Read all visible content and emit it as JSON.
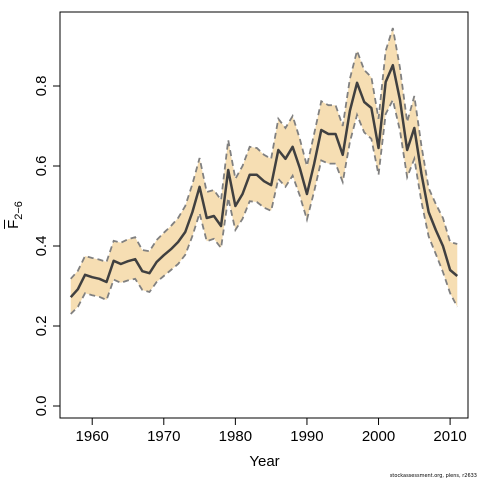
{
  "chart_data": {
    "type": "line",
    "title": "",
    "xlabel": "Year",
    "ylabel_main": "F",
    "ylabel_sub": "2−6",
    "xlim": [
      1955.5,
      2012.5
    ],
    "ylim": [
      -0.03,
      0.985
    ],
    "x_ticks": [
      1960,
      1970,
      1980,
      1990,
      2000,
      2010
    ],
    "y_ticks": [
      0.0,
      0.2,
      0.4,
      0.6,
      0.8
    ],
    "y_tick_labels": [
      "0.0",
      "0.2",
      "0.4",
      "0.6",
      "0.8"
    ],
    "grid": false,
    "colors": {
      "band": "#f6deb3",
      "line": "#404040",
      "bound": "#808080"
    },
    "x": [
      1957,
      1958,
      1959,
      1960,
      1961,
      1962,
      1963,
      1964,
      1965,
      1966,
      1967,
      1968,
      1969,
      1970,
      1971,
      1972,
      1973,
      1974,
      1975,
      1976,
      1977,
      1978,
      1979,
      1980,
      1981,
      1982,
      1983,
      1984,
      1985,
      1986,
      1987,
      1988,
      1989,
      1990,
      1991,
      1992,
      1993,
      1994,
      1995,
      1996,
      1997,
      1998,
      1999,
      2000,
      2001,
      2002,
      2003,
      2004,
      2005,
      2006,
      2007,
      2008,
      2009,
      2010,
      2011
    ],
    "series": [
      {
        "role": "estimate",
        "values": [
          0.272,
          0.292,
          0.328,
          0.322,
          0.318,
          0.31,
          0.363,
          0.355,
          0.362,
          0.367,
          0.337,
          0.332,
          0.36,
          0.377,
          0.392,
          0.41,
          0.435,
          0.485,
          0.548,
          0.47,
          0.475,
          0.45,
          0.59,
          0.5,
          0.53,
          0.578,
          0.578,
          0.562,
          0.552,
          0.64,
          0.618,
          0.648,
          0.595,
          0.53,
          0.605,
          0.69,
          0.68,
          0.68,
          0.628,
          0.738,
          0.808,
          0.76,
          0.745,
          0.645,
          0.81,
          0.852,
          0.765,
          0.64,
          0.695,
          0.58,
          0.485,
          0.44,
          0.4,
          0.34,
          0.325
        ]
      },
      {
        "role": "upper",
        "values": [
          0.318,
          0.338,
          0.375,
          0.37,
          0.366,
          0.36,
          0.413,
          0.408,
          0.417,
          0.422,
          0.39,
          0.387,
          0.415,
          0.433,
          0.45,
          0.47,
          0.5,
          0.555,
          0.62,
          0.535,
          0.54,
          0.515,
          0.665,
          0.568,
          0.6,
          0.648,
          0.645,
          0.628,
          0.618,
          0.718,
          0.695,
          0.725,
          0.668,
          0.6,
          0.68,
          0.762,
          0.752,
          0.752,
          0.7,
          0.818,
          0.888,
          0.84,
          0.822,
          0.718,
          0.888,
          0.945,
          0.845,
          0.71,
          0.775,
          0.65,
          0.545,
          0.505,
          0.47,
          0.41,
          0.405
        ]
      },
      {
        "role": "lower",
        "values": [
          0.23,
          0.248,
          0.282,
          0.277,
          0.273,
          0.265,
          0.316,
          0.308,
          0.314,
          0.318,
          0.29,
          0.285,
          0.31,
          0.325,
          0.34,
          0.355,
          0.378,
          0.425,
          0.482,
          0.412,
          0.418,
          0.395,
          0.52,
          0.44,
          0.468,
          0.512,
          0.51,
          0.496,
          0.488,
          0.568,
          0.548,
          0.576,
          0.526,
          0.466,
          0.536,
          0.614,
          0.606,
          0.606,
          0.56,
          0.66,
          0.728,
          0.684,
          0.668,
          0.578,
          0.73,
          0.765,
          0.688,
          0.572,
          0.618,
          0.51,
          0.424,
          0.38,
          0.335,
          0.282,
          0.248
        ]
      }
    ]
  },
  "footer": {
    "credit": "stockassessment.org, plens, r2633"
  }
}
